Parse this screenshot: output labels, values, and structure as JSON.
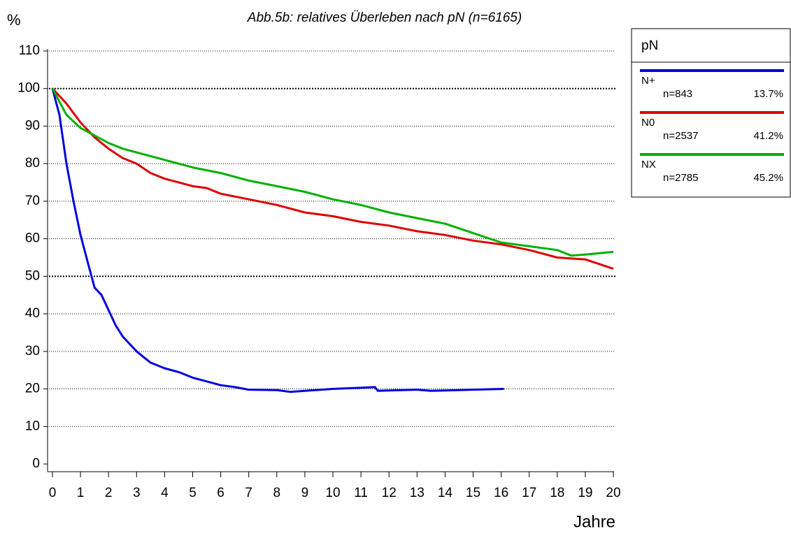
{
  "chart_data": {
    "type": "line",
    "title": "Abb.5b: relatives Überleben nach pN (n=6165)",
    "y_label": "%",
    "x_label": "Jahre",
    "legend_title": "pN",
    "xlim": [
      0,
      20
    ],
    "xticks": [
      0,
      1,
      2,
      3,
      4,
      5,
      6,
      7,
      8,
      9,
      10,
      11,
      12,
      13,
      14,
      15,
      16,
      17,
      18,
      19,
      20
    ],
    "ylim": [
      0,
      110
    ],
    "yticks": [
      0,
      10,
      20,
      30,
      40,
      50,
      60,
      70,
      80,
      90,
      100,
      110
    ],
    "grid": true,
    "emphasized_gridlines": [
      50,
      100
    ],
    "series": [
      {
        "name": "N+",
        "count_label": "n=843",
        "share_label": "13.7%",
        "color": "#0000e0",
        "x": [
          0,
          0.25,
          0.5,
          0.75,
          1,
          1.25,
          1.5,
          1.75,
          2,
          2.25,
          2.5,
          2.75,
          3,
          3.25,
          3.5,
          4,
          4.5,
          5,
          5.5,
          6,
          6.5,
          7,
          8,
          8.5,
          9,
          10,
          11,
          11.5,
          11.6,
          12,
          13,
          13.5,
          14,
          15,
          16.1
        ],
        "values": [
          100,
          93,
          80,
          70,
          61,
          54,
          47,
          45,
          41,
          37,
          34,
          32,
          30,
          28.5,
          27,
          25.5,
          24.5,
          23,
          22,
          21,
          20.5,
          19.8,
          19.7,
          19.2,
          19.5,
          20,
          20.3,
          20.5,
          19.5,
          19.6,
          19.8,
          19.5,
          19.6,
          19.8,
          20
        ]
      },
      {
        "name": "N0",
        "count_label": "n=2537",
        "share_label": "41.2%",
        "color": "#e00000",
        "x": [
          0,
          0.5,
          1,
          1.5,
          2,
          2.5,
          3,
          3.5,
          4,
          4.5,
          5,
          5.5,
          6,
          7,
          8,
          9,
          10,
          11,
          12,
          13,
          14,
          15,
          16,
          17,
          18,
          19,
          20
        ],
        "values": [
          100,
          96,
          91,
          87,
          84,
          81.5,
          80,
          77.5,
          76,
          75,
          74,
          73.5,
          72,
          70.5,
          69,
          67,
          66,
          64.5,
          63.5,
          62,
          61,
          59.5,
          58.5,
          57,
          55,
          54.5,
          52
        ]
      },
      {
        "name": "NX",
        "count_label": "n=2785",
        "share_label": "45.2%",
        "color": "#00b000",
        "x": [
          0,
          0.5,
          1,
          1.5,
          2,
          2.5,
          3,
          3.5,
          4,
          4.5,
          5,
          6,
          7,
          8,
          9,
          10,
          11,
          12,
          13,
          14,
          15,
          16,
          17,
          18,
          18.5,
          19,
          20
        ],
        "values": [
          100,
          93,
          89.5,
          87.5,
          85.5,
          84,
          83,
          82,
          81,
          80,
          79,
          77.5,
          75.5,
          74,
          72.5,
          70.5,
          69,
          67,
          65.5,
          64,
          61.5,
          59,
          58,
          57,
          55.5,
          55.8,
          56.5
        ]
      }
    ]
  }
}
